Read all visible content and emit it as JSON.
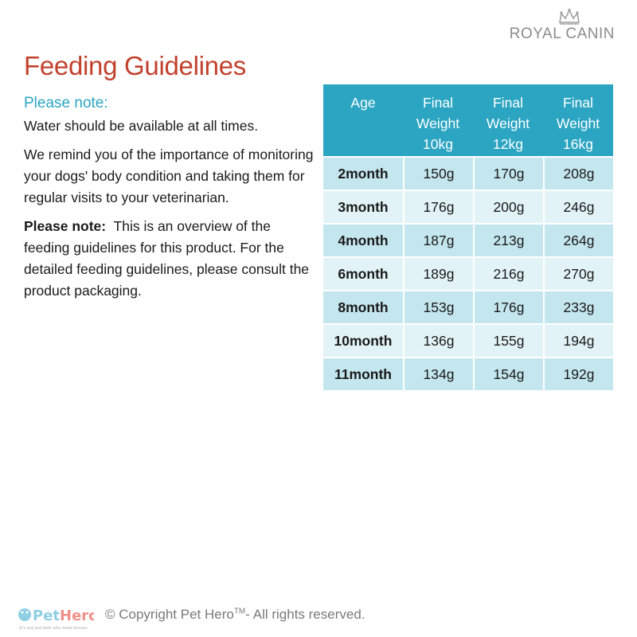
{
  "brand": {
    "name": "ROYAL CANIN",
    "icon": "crown-icon"
  },
  "title": "Feeding Guidelines",
  "notes": {
    "heading": "Please note:",
    "water": "Water should be available at all times.",
    "reminder": "We remind you of the importance of monitoring your dogs' body condition and taking them for regular visits to your veterinarian.",
    "overview_label": "Please note:",
    "overview_text": "This is an overview of the feeding guidelines for this product. For the detailed feeding guidelines, please consult the product packaging."
  },
  "table": {
    "headers": [
      {
        "line1": "Age",
        "line2": "",
        "line3": ""
      },
      {
        "line1": "Final",
        "line2": "Weight",
        "line3": "10kg"
      },
      {
        "line1": "Final",
        "line2": "Weight",
        "line3": "12kg"
      },
      {
        "line1": "Final",
        "line2": "Weight",
        "line3": "16kg"
      }
    ],
    "rows": [
      [
        "2month",
        "150g",
        "170g",
        "208g"
      ],
      [
        "3month",
        "176g",
        "200g",
        "246g"
      ],
      [
        "4month",
        "187g",
        "213g",
        "264g"
      ],
      [
        "6month",
        "189g",
        "216g",
        "270g"
      ],
      [
        "8month",
        "153g",
        "176g",
        "233g"
      ],
      [
        "10month",
        "136g",
        "155g",
        "194g"
      ],
      [
        "11month",
        "134g",
        "154g",
        "192g"
      ]
    ],
    "colors": {
      "header": "#2ba5c2",
      "row_odd": "#c4e6ee",
      "row_even": "#e2f3f7"
    }
  },
  "footer": {
    "logo_text": "PetHero",
    "tagline": "It's not just kids who need heroes",
    "copyright_prefix": "© Copyright Pet Hero",
    "copyright_tm": "TM",
    "copyright_suffix": "- All rights reserved."
  }
}
